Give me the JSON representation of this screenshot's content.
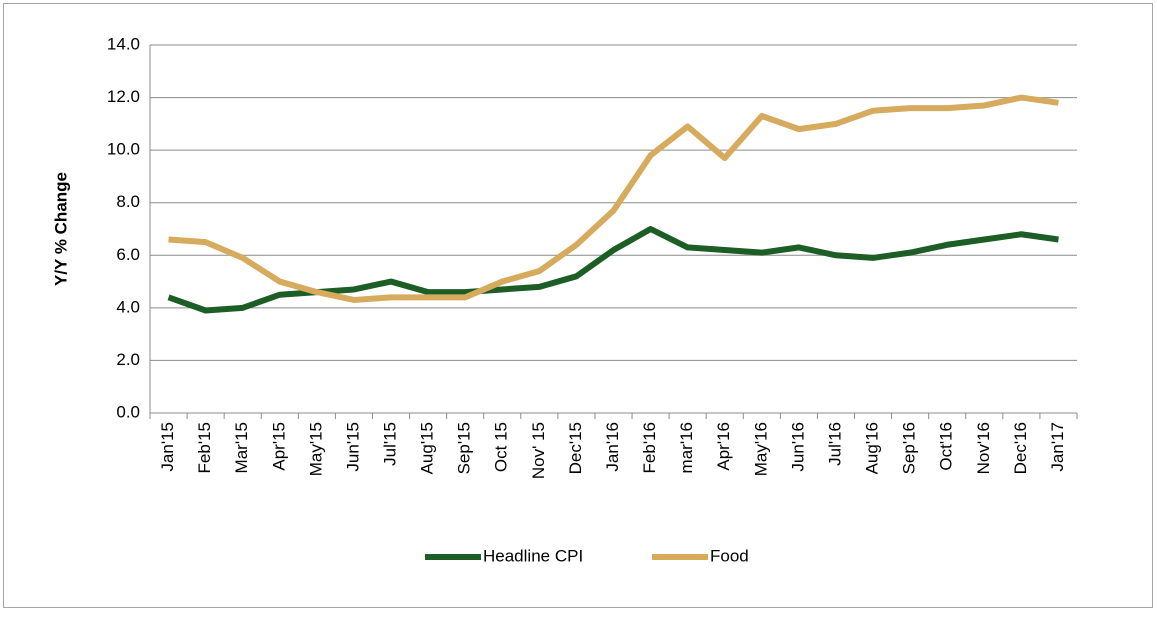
{
  "chart_data": {
    "type": "line",
    "y_label": "Y/Y % Change",
    "categories": [
      "Jan'15",
      "Feb'15",
      "Mar'15",
      "Apr'15",
      "May'15",
      "Jun'15",
      "Jul'15",
      "Aug'15",
      "Sep'15",
      "Oct 15",
      "Nov' 15",
      "Dec'15",
      "Jan'16",
      "Feb'16",
      "mar'16",
      "Apr'16",
      "May'16",
      "Jun'16",
      "Jul'16",
      "Aug'16",
      "Sep'16",
      "Oct'16",
      "Nov'16",
      "Dec'16",
      "Jan'17"
    ],
    "series": [
      {
        "name": "Headline CPI",
        "color": "#1c5e26",
        "values": [
          4.4,
          3.9,
          4.0,
          4.5,
          4.6,
          4.7,
          5.0,
          4.6,
          4.6,
          4.7,
          4.8,
          5.2,
          6.2,
          7.0,
          6.3,
          6.2,
          6.1,
          6.3,
          6.0,
          5.9,
          6.1,
          6.4,
          6.6,
          6.8,
          6.6
        ]
      },
      {
        "name": "Food",
        "color": "#d6ab5e",
        "values": [
          6.6,
          6.5,
          5.9,
          5.0,
          4.6,
          4.3,
          4.4,
          4.4,
          4.4,
          5.0,
          5.4,
          6.4,
          7.7,
          9.8,
          10.9,
          9.7,
          11.3,
          10.8,
          11.0,
          11.5,
          11.6,
          11.6,
          11.7,
          12.0,
          11.8
        ]
      }
    ],
    "ylim": [
      0,
      14
    ],
    "yticks": [
      {
        "value": 0,
        "label": "0.0"
      },
      {
        "value": 2,
        "label": "2.0"
      },
      {
        "value": 4,
        "label": "4.0"
      },
      {
        "value": 6,
        "label": "6.0"
      },
      {
        "value": 8,
        "label": "8.0"
      },
      {
        "value": 10,
        "label": "10.0"
      },
      {
        "value": 12,
        "label": "12.0"
      },
      {
        "value": 14,
        "label": "14.0"
      }
    ],
    "grid": true,
    "legend": "bottom"
  }
}
